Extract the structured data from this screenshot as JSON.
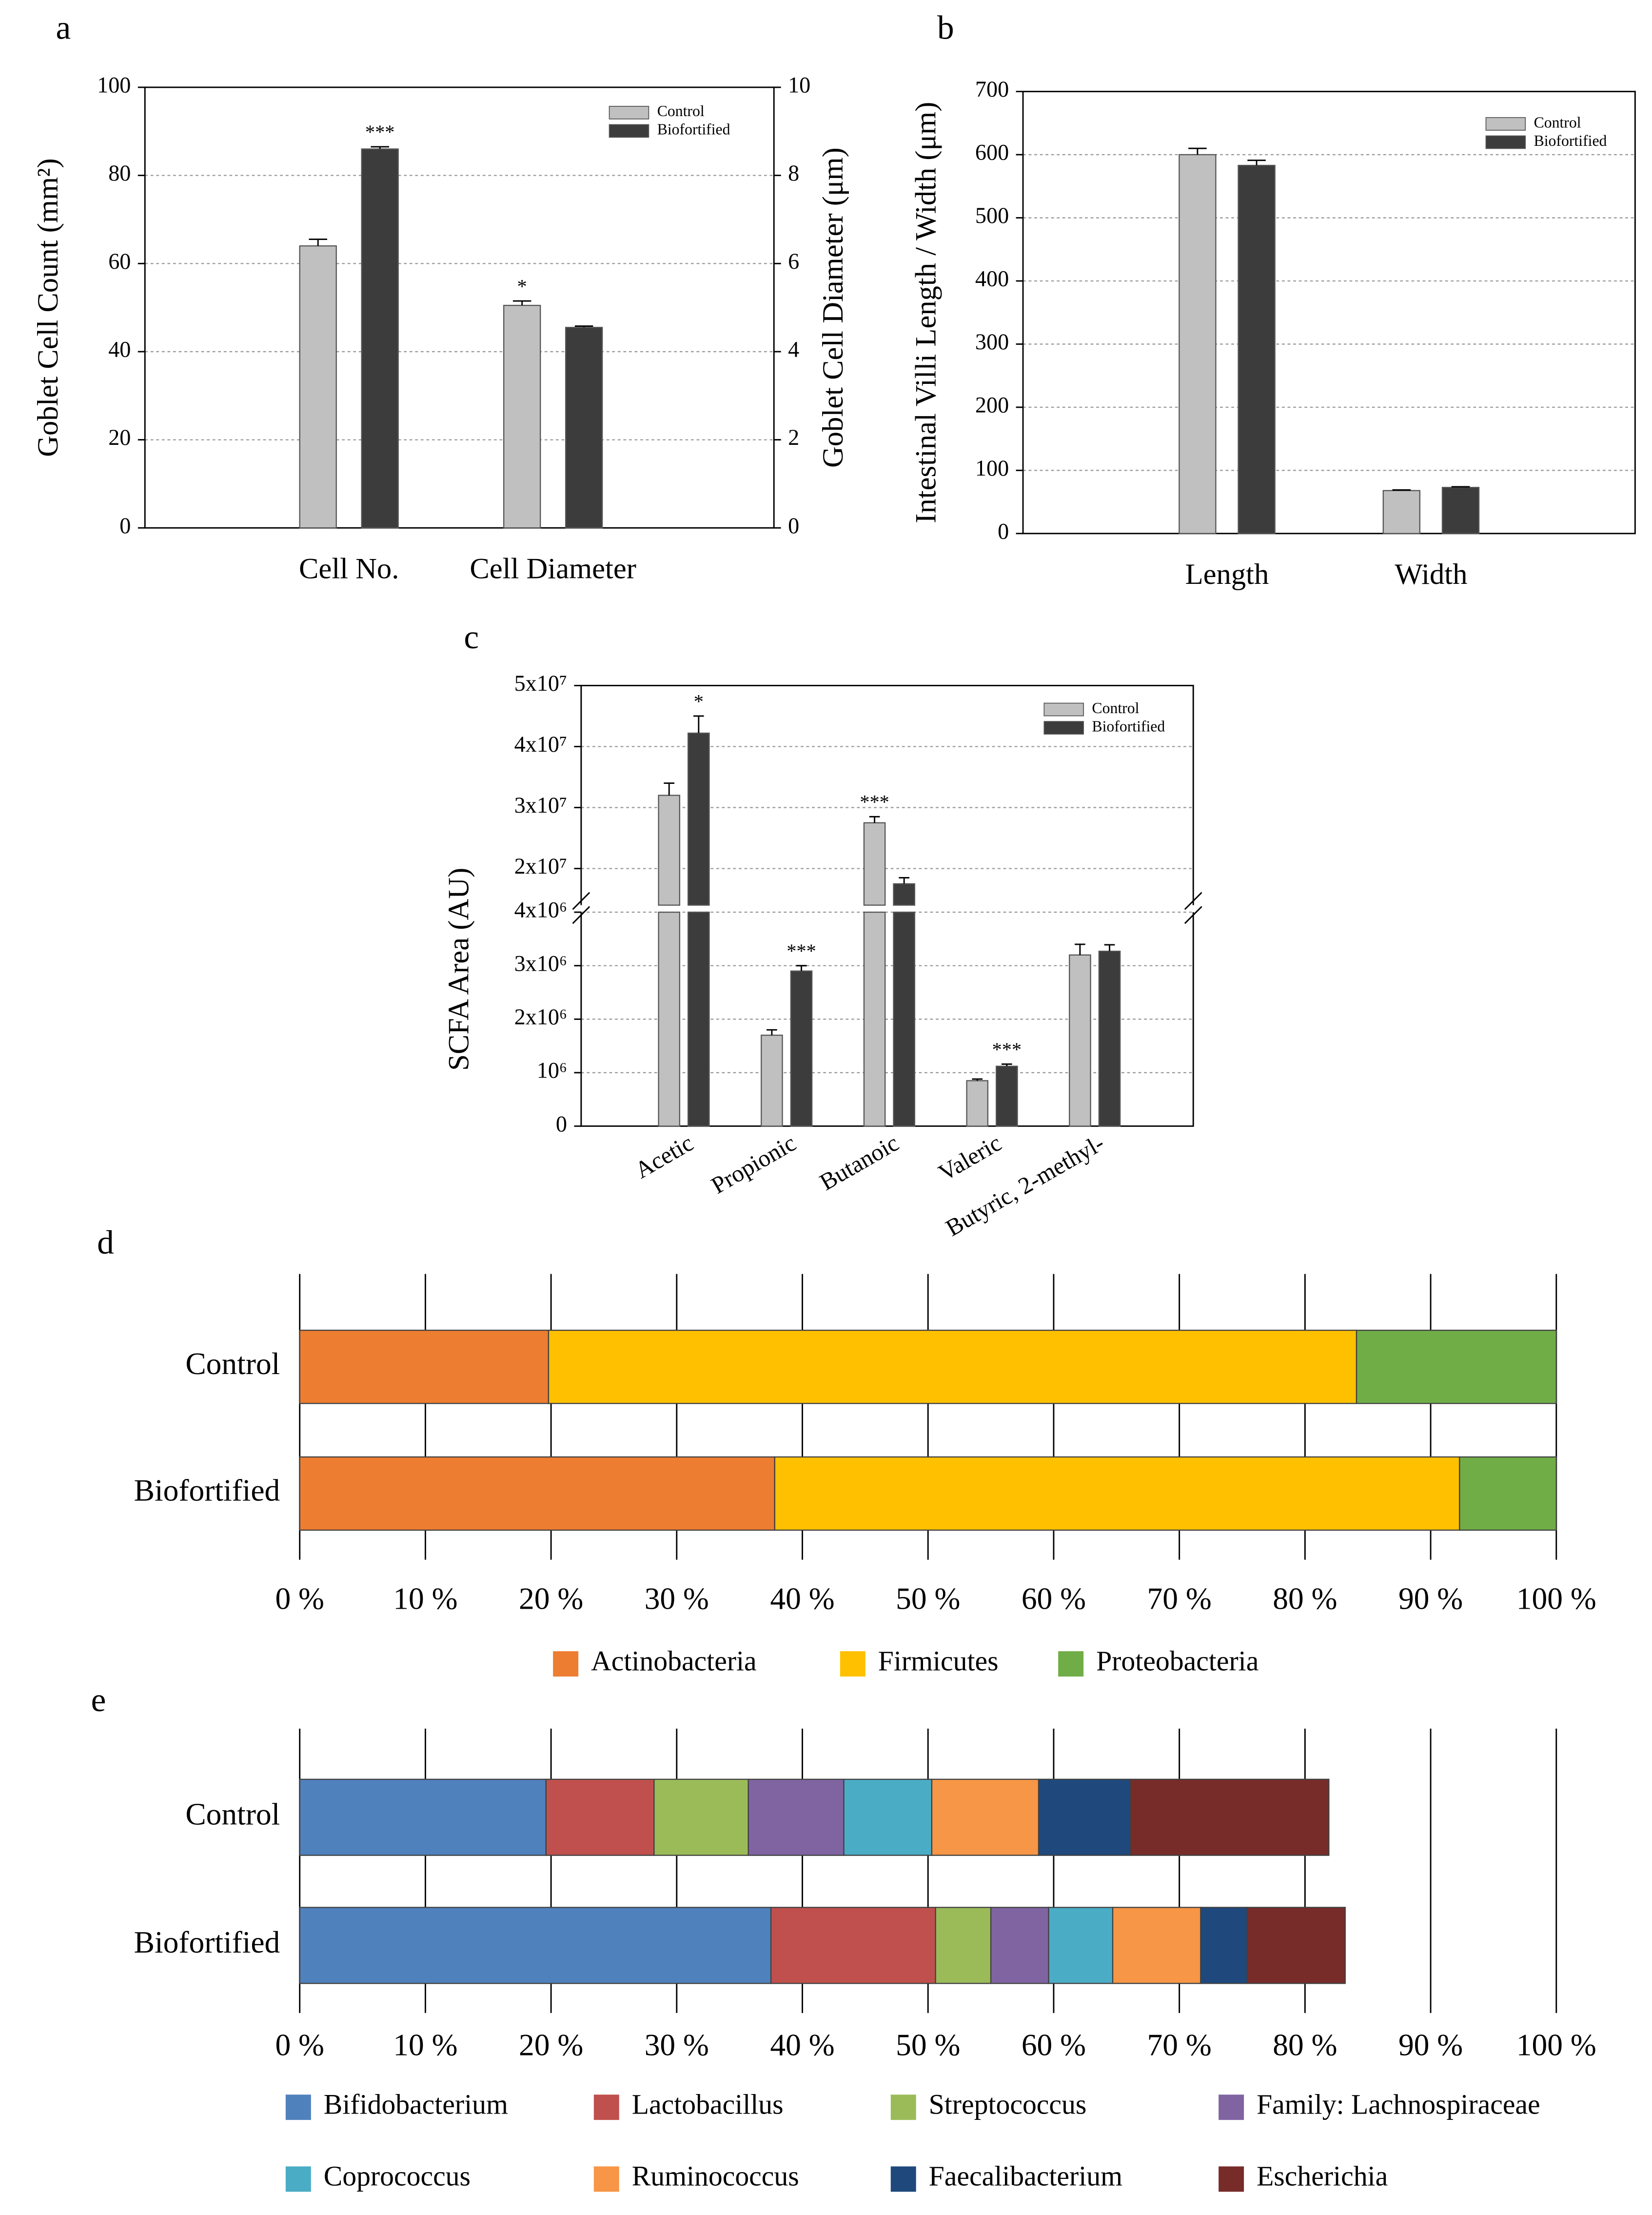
{
  "chart_data": [
    {
      "type": "bar",
      "label": "a",
      "categories": [
        "Cell No.",
        "Cell Diameter"
      ],
      "category_axes": [
        "y",
        "y2"
      ],
      "series": [
        {
          "name": "Control",
          "color": "#c0c0c0",
          "values": [
            64,
            5.05
          ],
          "errors": [
            1.5,
            0.1
          ]
        },
        {
          "name": "Biofortified",
          "color": "#3c3c3c",
          "values": [
            86,
            4.55
          ],
          "errors": [
            0.5,
            0.03
          ]
        }
      ],
      "ylabel": "Goblet Cell Count (mm²)",
      "y2label": "Goblet Cell Diameter (μm)",
      "ylim": [
        0,
        100
      ],
      "yticks": [
        0,
        20,
        40,
        60,
        80,
        100
      ],
      "y2lim": [
        0,
        10
      ],
      "y2ticks": [
        0,
        2,
        4,
        6,
        8,
        10
      ],
      "grid": true,
      "legend": "upper right",
      "annotations": [
        {
          "text": "***",
          "series": 1,
          "category": 0
        },
        {
          "text": "*",
          "series": 0,
          "category": 1
        }
      ]
    },
    {
      "type": "bar",
      "label": "b",
      "categories": [
        "Length",
        "Width"
      ],
      "series": [
        {
          "name": "Control",
          "color": "#c0c0c0",
          "values": [
            600,
            68
          ],
          "errors": [
            10,
            1
          ]
        },
        {
          "name": "Biofortified",
          "color": "#3c3c3c",
          "values": [
            583,
            73
          ],
          "errors": [
            8,
            1
          ]
        }
      ],
      "ylabel": "Intestinal Villi Length / Width (μm)",
      "ylim": [
        0,
        700
      ],
      "yticks": [
        0,
        100,
        200,
        300,
        400,
        500,
        600,
        700
      ],
      "grid": true,
      "legend": "upper right"
    },
    {
      "type": "bar",
      "label": "c",
      "categories": [
        "Acetic",
        "Propionic",
        "Butanoic",
        "Valeric",
        "Butyric, 2-methyl-"
      ],
      "series": [
        {
          "name": "Control",
          "color": "#c0c0c0",
          "values": [
            32000000,
            1700000,
            27500000,
            850000,
            3200000
          ],
          "errors": [
            2000000,
            100000,
            1000000,
            30000,
            200000
          ]
        },
        {
          "name": "Biofortified",
          "color": "#3c3c3c",
          "values": [
            42200000,
            2900000,
            17500000,
            1120000,
            3270000
          ],
          "errors": [
            2800000,
            100000,
            1000000,
            40000,
            120000
          ]
        }
      ],
      "ylabel": "SCFA Area (AU)",
      "axis_break": true,
      "ylim": [
        0,
        4000000
      ],
      "ylim_upper": [
        14000000,
        50000000
      ],
      "yticks": [
        0,
        {
          "value": 1000000,
          "label": "10⁶"
        },
        {
          "value": 2000000,
          "label": "2x10⁶"
        },
        {
          "value": 3000000,
          "label": "3x10⁶"
        },
        {
          "value": 4000000,
          "label": "4x10⁶"
        },
        {
          "value": 20000000,
          "label": "2x10⁷"
        },
        {
          "value": 30000000,
          "label": "3x10⁷"
        },
        {
          "value": 40000000,
          "label": "4x10⁷"
        },
        {
          "value": 50000000,
          "label": "5x10⁷"
        }
      ],
      "grid": true,
      "legend": "upper right",
      "xtick_rotation": -30,
      "annotations": [
        {
          "text": "*",
          "series": 1,
          "category": 0
        },
        {
          "text": "***",
          "series": 1,
          "category": 1
        },
        {
          "text": "***",
          "series": 0,
          "category": 2
        },
        {
          "text": "***",
          "series": 1,
          "category": 3
        }
      ]
    },
    {
      "type": "stacked_barh",
      "label": "d",
      "categories": [
        "Control",
        "Biofortified"
      ],
      "series": [
        {
          "name": "Actinobacteria",
          "color": "#ed7d31",
          "values": [
            19.8,
            37.8
          ]
        },
        {
          "name": "Firmicutes",
          "color": "#ffc000",
          "values": [
            64.3,
            54.5
          ]
        },
        {
          "name": "Proteobacteria",
          "color": "#70ad47",
          "values": [
            15.9,
            7.7
          ]
        }
      ],
      "xlim": [
        0,
        100
      ],
      "xticks": [
        {
          "value": 0,
          "label": "0 %"
        },
        {
          "value": 10,
          "label": "10 %"
        },
        {
          "value": 20,
          "label": "20 %"
        },
        {
          "value": 30,
          "label": "30 %"
        },
        {
          "value": 40,
          "label": "40 %"
        },
        {
          "value": 50,
          "label": "50 %"
        },
        {
          "value": 60,
          "label": "60 %"
        },
        {
          "value": 70,
          "label": "70 %"
        },
        {
          "value": 80,
          "label": "80 %"
        },
        {
          "value": 90,
          "label": "90 %"
        },
        {
          "value": 100,
          "label": "100 %"
        }
      ],
      "grid": true,
      "legend": "bottom"
    },
    {
      "type": "stacked_barh",
      "label": "e",
      "categories": [
        "Control",
        "Biofortified"
      ],
      "series": [
        {
          "name": "Bifidobacterium",
          "color": "#4f81bd",
          "values": [
            19.6,
            37.5
          ]
        },
        {
          "name": "Lactobacillus",
          "color": "#c0504d",
          "values": [
            8.6,
            13.1
          ]
        },
        {
          "name": "Streptococcus",
          "color": "#9bbb59",
          "values": [
            7.5,
            4.4
          ]
        },
        {
          "name": "Family: Lachnospiraceae",
          "color": "#8064a2",
          "values": [
            7.6,
            4.6
          ]
        },
        {
          "name": "Coprococcus",
          "color": "#4bacc6",
          "values": [
            7.0,
            5.1
          ]
        },
        {
          "name": "Ruminococcus",
          "color": "#f79646",
          "values": [
            8.5,
            7.0
          ]
        },
        {
          "name": "Faecalibacterium",
          "color": "#1f497d",
          "values": [
            7.3,
            3.7
          ]
        },
        {
          "name": "Escherichia",
          "color": "#772c2a",
          "values": [
            15.8,
            7.8
          ]
        }
      ],
      "xlim": [
        0,
        100
      ],
      "xticks": [
        {
          "value": 0,
          "label": "0 %"
        },
        {
          "value": 10,
          "label": "10 %"
        },
        {
          "value": 20,
          "label": "20 %"
        },
        {
          "value": 30,
          "label": "30 %"
        },
        {
          "value": 40,
          "label": "40 %"
        },
        {
          "value": 50,
          "label": "50 %"
        },
        {
          "value": 60,
          "label": "60 %"
        },
        {
          "value": 70,
          "label": "70 %"
        },
        {
          "value": 80,
          "label": "80 %"
        },
        {
          "value": 90,
          "label": "90 %"
        },
        {
          "value": 100,
          "label": "100 %"
        }
      ],
      "grid": true,
      "legend": "bottom"
    }
  ]
}
